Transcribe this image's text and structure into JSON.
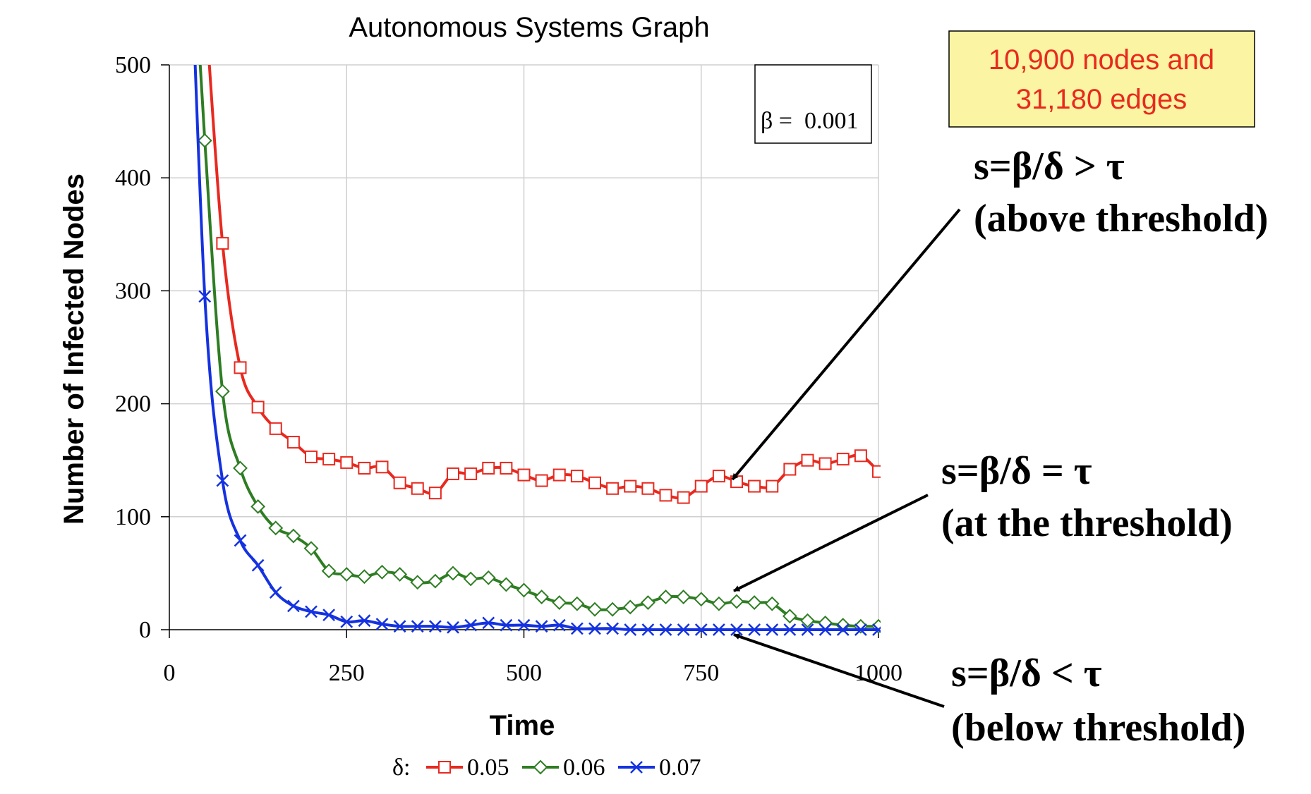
{
  "chart_data": {
    "type": "line",
    "title": "Autonomous Systems Graph",
    "xlabel": "Time",
    "ylabel": "Number of Infected Nodes",
    "xlim": [
      0,
      1000
    ],
    "ylim": [
      0,
      500
    ],
    "xticks": [
      0,
      250,
      500,
      750,
      1000
    ],
    "yticks": [
      0,
      100,
      200,
      300,
      400,
      500
    ],
    "grid": true,
    "legend": {
      "position": "bottom",
      "prefix": "δ:",
      "entries": [
        "0.05",
        "0.06",
        "0.07"
      ]
    },
    "parameter_box": {
      "text": "β =  0.001",
      "position": "top-right"
    },
    "series": [
      {
        "name": "0.05",
        "color": "#e8291f",
        "marker": "square",
        "x": [
          50,
          75,
          100,
          125,
          150,
          175,
          200,
          225,
          250,
          275,
          300,
          325,
          350,
          375,
          400,
          425,
          450,
          475,
          500,
          525,
          550,
          575,
          600,
          625,
          650,
          675,
          700,
          725,
          750,
          775,
          800,
          825,
          850,
          875,
          900,
          925,
          950,
          975,
          1000
        ],
        "y": [
          560,
          342,
          232,
          197,
          178,
          166,
          153,
          151,
          148,
          143,
          144,
          130,
          125,
          121,
          138,
          138,
          143,
          143,
          137,
          132,
          137,
          136,
          130,
          125,
          127,
          125,
          119,
          117,
          127,
          136,
          131,
          127,
          127,
          142,
          150,
          147,
          151,
          154,
          140
        ]
      },
      {
        "name": "0.06",
        "color": "#2e7d23",
        "marker": "diamond",
        "x": [
          25,
          50,
          75,
          100,
          125,
          150,
          175,
          200,
          225,
          250,
          275,
          300,
          325,
          350,
          375,
          400,
          425,
          450,
          475,
          500,
          525,
          550,
          575,
          600,
          625,
          650,
          675,
          700,
          725,
          750,
          775,
          800,
          825,
          850,
          875,
          900,
          925,
          950,
          975,
          1000
        ],
        "y": [
          700,
          433,
          211,
          143,
          109,
          90,
          83,
          72,
          52,
          49,
          47,
          51,
          49,
          42,
          43,
          50,
          45,
          46,
          40,
          35,
          29,
          24,
          23,
          18,
          18,
          20,
          24,
          29,
          29,
          27,
          23,
          25,
          24,
          23,
          12,
          8,
          6,
          4,
          3,
          3
        ]
      },
      {
        "name": "0.07",
        "color": "#1432e0",
        "marker": "x",
        "x": [
          25,
          50,
          75,
          100,
          125,
          150,
          175,
          200,
          225,
          250,
          275,
          300,
          325,
          350,
          375,
          400,
          425,
          450,
          475,
          500,
          525,
          550,
          575,
          600,
          625,
          650,
          675,
          700,
          725,
          750,
          775,
          800,
          825,
          850,
          875,
          900,
          925,
          950,
          975,
          1000
        ],
        "y": [
          700,
          295,
          132,
          79,
          57,
          33,
          21,
          16,
          13,
          7,
          8,
          5,
          3,
          3,
          3,
          2,
          4,
          6,
          4,
          4,
          3,
          4,
          1,
          1,
          1,
          0,
          0,
          0,
          0,
          0,
          0,
          0,
          0,
          0,
          0,
          0,
          0,
          0,
          0,
          0
        ]
      }
    ]
  },
  "info_box": {
    "line1": "10,900 nodes and",
    "line2": "31,180 edges",
    "text_color": "#e8291f",
    "bg_color": "#fbf4a2"
  },
  "annotations": {
    "above": {
      "line1": "s=β/δ > τ",
      "line2": "(above threshold)"
    },
    "at": {
      "line1": "s=β/δ = τ",
      "line2": "(at the threshold)"
    },
    "below": {
      "line1": "s=β/δ < τ",
      "line2": "(below threshold)"
    }
  }
}
